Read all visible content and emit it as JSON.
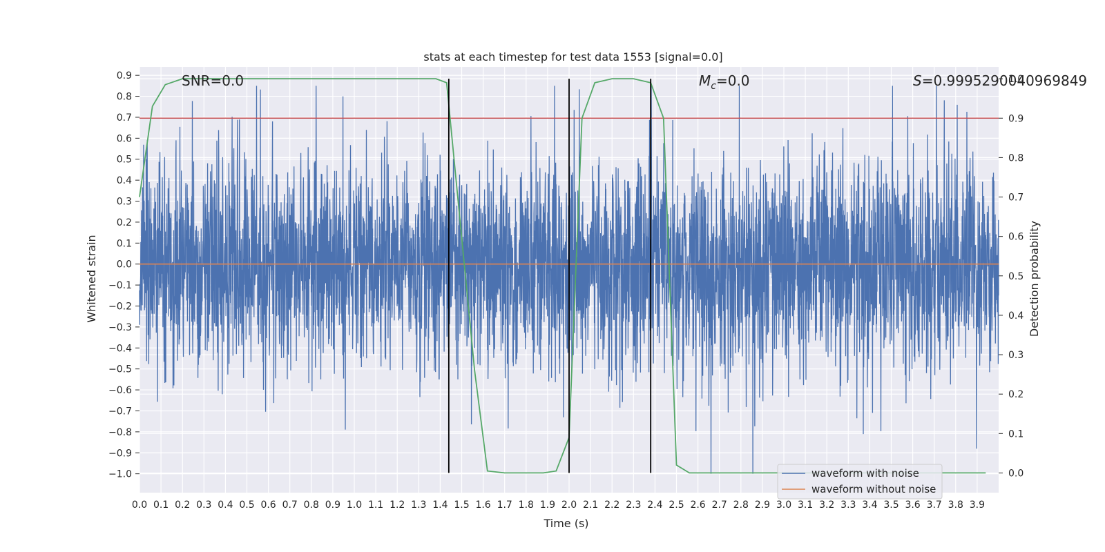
{
  "chart_data": {
    "type": "line",
    "title": "stats at each timestep for test data 1553 [signal=0.0]",
    "xlabel": "Time (s)",
    "ylabel": "Whitened strain",
    "y2label": "Detection probability",
    "xlim": [
      0.0,
      4.0
    ],
    "ylim": [
      -1.09,
      0.94
    ],
    "y2lim": [
      -0.05,
      1.03
    ],
    "xticks": [
      "0.0",
      "0.1",
      "0.2",
      "0.3",
      "0.4",
      "0.5",
      "0.6",
      "0.7",
      "0.8",
      "0.9",
      "1.0",
      "1.1",
      "1.2",
      "1.3",
      "1.4",
      "1.5",
      "1.6",
      "1.7",
      "1.8",
      "1.9",
      "2.0",
      "2.1",
      "2.2",
      "2.3",
      "2.4",
      "2.5",
      "2.6",
      "2.7",
      "2.8",
      "2.9",
      "3.0",
      "3.1",
      "3.2",
      "3.3",
      "3.4",
      "3.5",
      "3.6",
      "3.7",
      "3.8",
      "3.9"
    ],
    "yticks": [
      "0.9",
      "0.8",
      "0.7",
      "0.6",
      "0.5",
      "0.4",
      "0.3",
      "0.2",
      "0.1",
      "0.0",
      "-0.1",
      "-0.2",
      "-0.3",
      "-0.4",
      "-0.5",
      "-0.6",
      "-0.7",
      "-0.8",
      "-0.9",
      "-1.0"
    ],
    "y2ticks": [
      "1.0",
      "0.9",
      "0.8",
      "0.7",
      "0.6",
      "0.5",
      "0.4",
      "0.3",
      "0.2",
      "0.1",
      "0.0"
    ],
    "annotations": {
      "snr": "SNR=0.0",
      "mc_symbol": "M",
      "mc_sub": "c",
      "mc_value": "=0.0",
      "s_symbol": "S",
      "s_value": "=0.9995290040969849"
    },
    "series": [
      {
        "name": "waveform with noise",
        "color": "#4c72b0",
        "description": "dense noise trace",
        "typical_amplitude": 0.3,
        "max": 0.85,
        "min": -1.0
      },
      {
        "name": "waveform without noise",
        "color": "#dd8452",
        "values_constant": 0.0
      },
      {
        "name": "detection probability",
        "color": "#55a868",
        "axis": "y2",
        "x": [
          0.0,
          0.06,
          0.12,
          0.2,
          0.3,
          0.5,
          0.8,
          1.0,
          1.2,
          1.38,
          1.43,
          1.56,
          1.62,
          1.7,
          1.88,
          1.94,
          2.0,
          2.06,
          2.12,
          2.2,
          2.3,
          2.38,
          2.44,
          2.5,
          2.56,
          2.7,
          3.0,
          3.5,
          3.94
        ],
        "values": [
          0.7,
          0.93,
          0.985,
          1.0,
          1.0,
          1.0,
          1.0,
          1.0,
          1.0,
          1.0,
          0.99,
          0.26,
          0.005,
          0.0,
          0.0,
          0.005,
          0.09,
          0.9,
          0.99,
          1.0,
          1.0,
          0.99,
          0.9,
          0.02,
          0.0,
          0.0,
          0.0,
          0.0,
          0.0
        ]
      }
    ],
    "threshold": {
      "value": 0.9,
      "axis": "y2",
      "color": "#c44e52"
    },
    "vlines": [
      1.44,
      2.0,
      2.38
    ],
    "legend": {
      "placement": "lower-right",
      "entries": [
        "waveform with noise",
        "waveform without noise"
      ]
    }
  }
}
